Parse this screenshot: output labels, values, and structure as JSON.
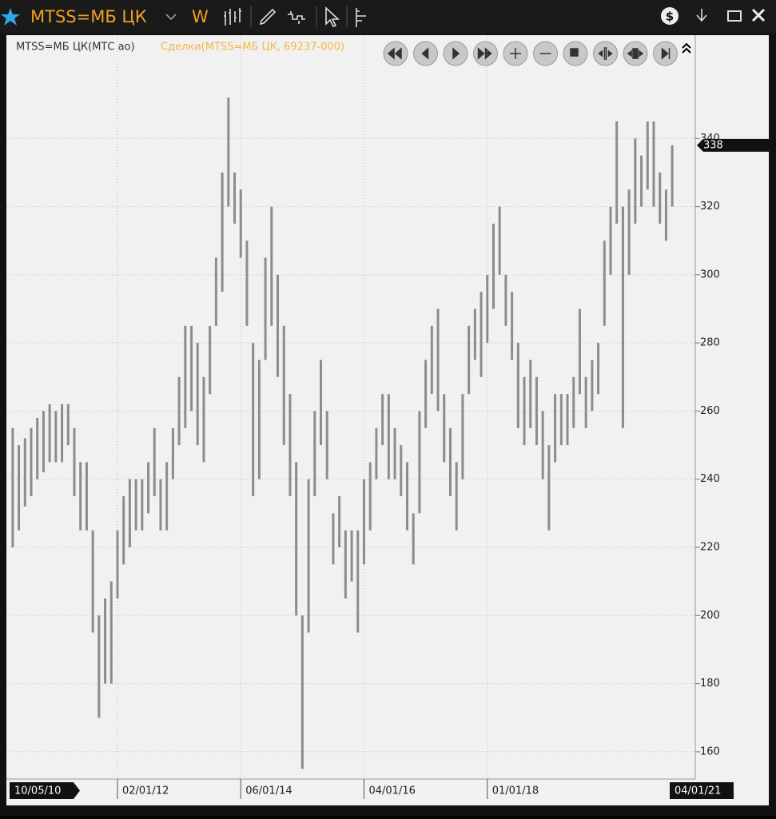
{
  "window": {
    "symbol": "MTSS=МБ ЦК",
    "period": "W"
  },
  "legend": {
    "instrument": "MTSS=МБ ЦК(МТС ао)",
    "study": "Сделки(MTSS=МБ ЦК, 69237-000)"
  },
  "chart_data": {
    "type": "range-bar",
    "color": "#8c8c8c",
    "categories": [
      "10/05/10",
      null,
      null,
      null,
      null,
      null,
      null,
      null,
      null,
      null,
      null,
      null,
      null,
      null,
      null,
      null,
      null,
      "02/01/12",
      null,
      null,
      null,
      null,
      null,
      null,
      null,
      null,
      null,
      null,
      null,
      null,
      null,
      null,
      null,
      null,
      null,
      null,
      null,
      "06/01/14",
      null,
      null,
      null,
      null,
      null,
      null,
      null,
      null,
      null,
      null,
      null,
      null,
      null,
      null,
      null,
      null,
      null,
      null,
      null,
      "04/01/16",
      null,
      null,
      null,
      null,
      null,
      null,
      null,
      null,
      null,
      null,
      null,
      null,
      null,
      null,
      null,
      null,
      null,
      null,
      null,
      "01/01/18",
      null,
      null,
      null,
      null,
      null,
      null,
      null,
      null,
      null,
      null,
      null,
      null,
      null,
      null,
      null,
      null,
      null,
      null,
      null,
      null,
      null,
      null,
      null,
      null,
      null,
      null,
      null,
      null,
      null,
      "04/01/21"
    ],
    "high": [
      255,
      250,
      252,
      255,
      258,
      260,
      262,
      260,
      262,
      262,
      255,
      245,
      245,
      225,
      200,
      205,
      210,
      225,
      235,
      240,
      240,
      240,
      245,
      255,
      240,
      245,
      255,
      270,
      285,
      285,
      280,
      270,
      285,
      305,
      330,
      352,
      330,
      325,
      310,
      280,
      275,
      305,
      320,
      300,
      285,
      265,
      245,
      200,
      240,
      260,
      275,
      260,
      230,
      235,
      225,
      225,
      225,
      240,
      245,
      255,
      265,
      265,
      255,
      250,
      245,
      230,
      260,
      275,
      285,
      290,
      265,
      255,
      245,
      265,
      285,
      290,
      295,
      300,
      315,
      320,
      300,
      295,
      280,
      270,
      275,
      270,
      260,
      250,
      265,
      265,
      265,
      270,
      290,
      270,
      275,
      280,
      310,
      320,
      345,
      320,
      325,
      340,
      335,
      345,
      345,
      330,
      325,
      338
    ],
    "low": [
      220,
      225,
      232,
      235,
      240,
      242,
      245,
      245,
      245,
      250,
      235,
      225,
      225,
      195,
      170,
      180,
      180,
      205,
      215,
      220,
      225,
      225,
      230,
      235,
      225,
      225,
      240,
      250,
      255,
      260,
      250,
      245,
      265,
      285,
      295,
      320,
      315,
      305,
      285,
      235,
      240,
      275,
      285,
      270,
      250,
      235,
      200,
      155,
      195,
      235,
      250,
      240,
      215,
      220,
      205,
      210,
      195,
      215,
      225,
      240,
      250,
      240,
      240,
      235,
      225,
      215,
      230,
      255,
      265,
      260,
      245,
      235,
      225,
      240,
      265,
      275,
      270,
      280,
      290,
      300,
      285,
      275,
      255,
      250,
      255,
      250,
      240,
      225,
      245,
      250,
      250,
      255,
      265,
      255,
      260,
      265,
      285,
      300,
      315,
      255,
      300,
      315,
      320,
      325,
      320,
      315,
      310,
      320
    ],
    "ylim": [
      152,
      360
    ],
    "yticks": [
      160,
      180,
      200,
      220,
      240,
      260,
      280,
      300,
      320,
      340
    ],
    "last_value": 338,
    "grid": true
  }
}
